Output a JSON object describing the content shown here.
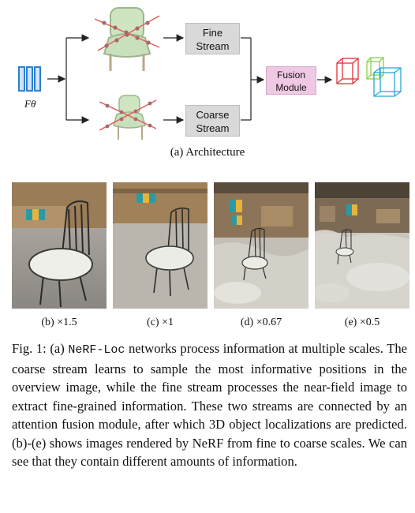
{
  "architecture": {
    "feature_label": "Fθ",
    "fine_stream_label": "Fine\nStream",
    "coarse_stream_label": "Coarse\nStream",
    "fusion_module_label": "Fusion\nModule",
    "caption": "(a) Architecture"
  },
  "renders": [
    {
      "caption": "(b) ×1.5"
    },
    {
      "caption": "(c) ×1"
    },
    {
      "caption": "(d) ×0.67"
    },
    {
      "caption": "(e) ×0.5"
    }
  ],
  "figure_caption": {
    "prefix": "Fig. 1: (a)",
    "code": "NeRF-Loc",
    "body": "networks process information at multiple scales. The coarse stream learns to sample the most informative positions in the overview image, while the fine stream processes the near-field image to extract fine-grained information. These two streams are connected by an attention fusion module, after which 3D object localizations are predicted. (b)-(e) shows images rendered by NeRF from fine to coarse scales. We can see that they contain different amounts of information."
  },
  "colors": {
    "feature_blue": "#2f7fcf",
    "stream_gray": "#d9d9d9",
    "fusion_pink": "#efc8e3"
  }
}
